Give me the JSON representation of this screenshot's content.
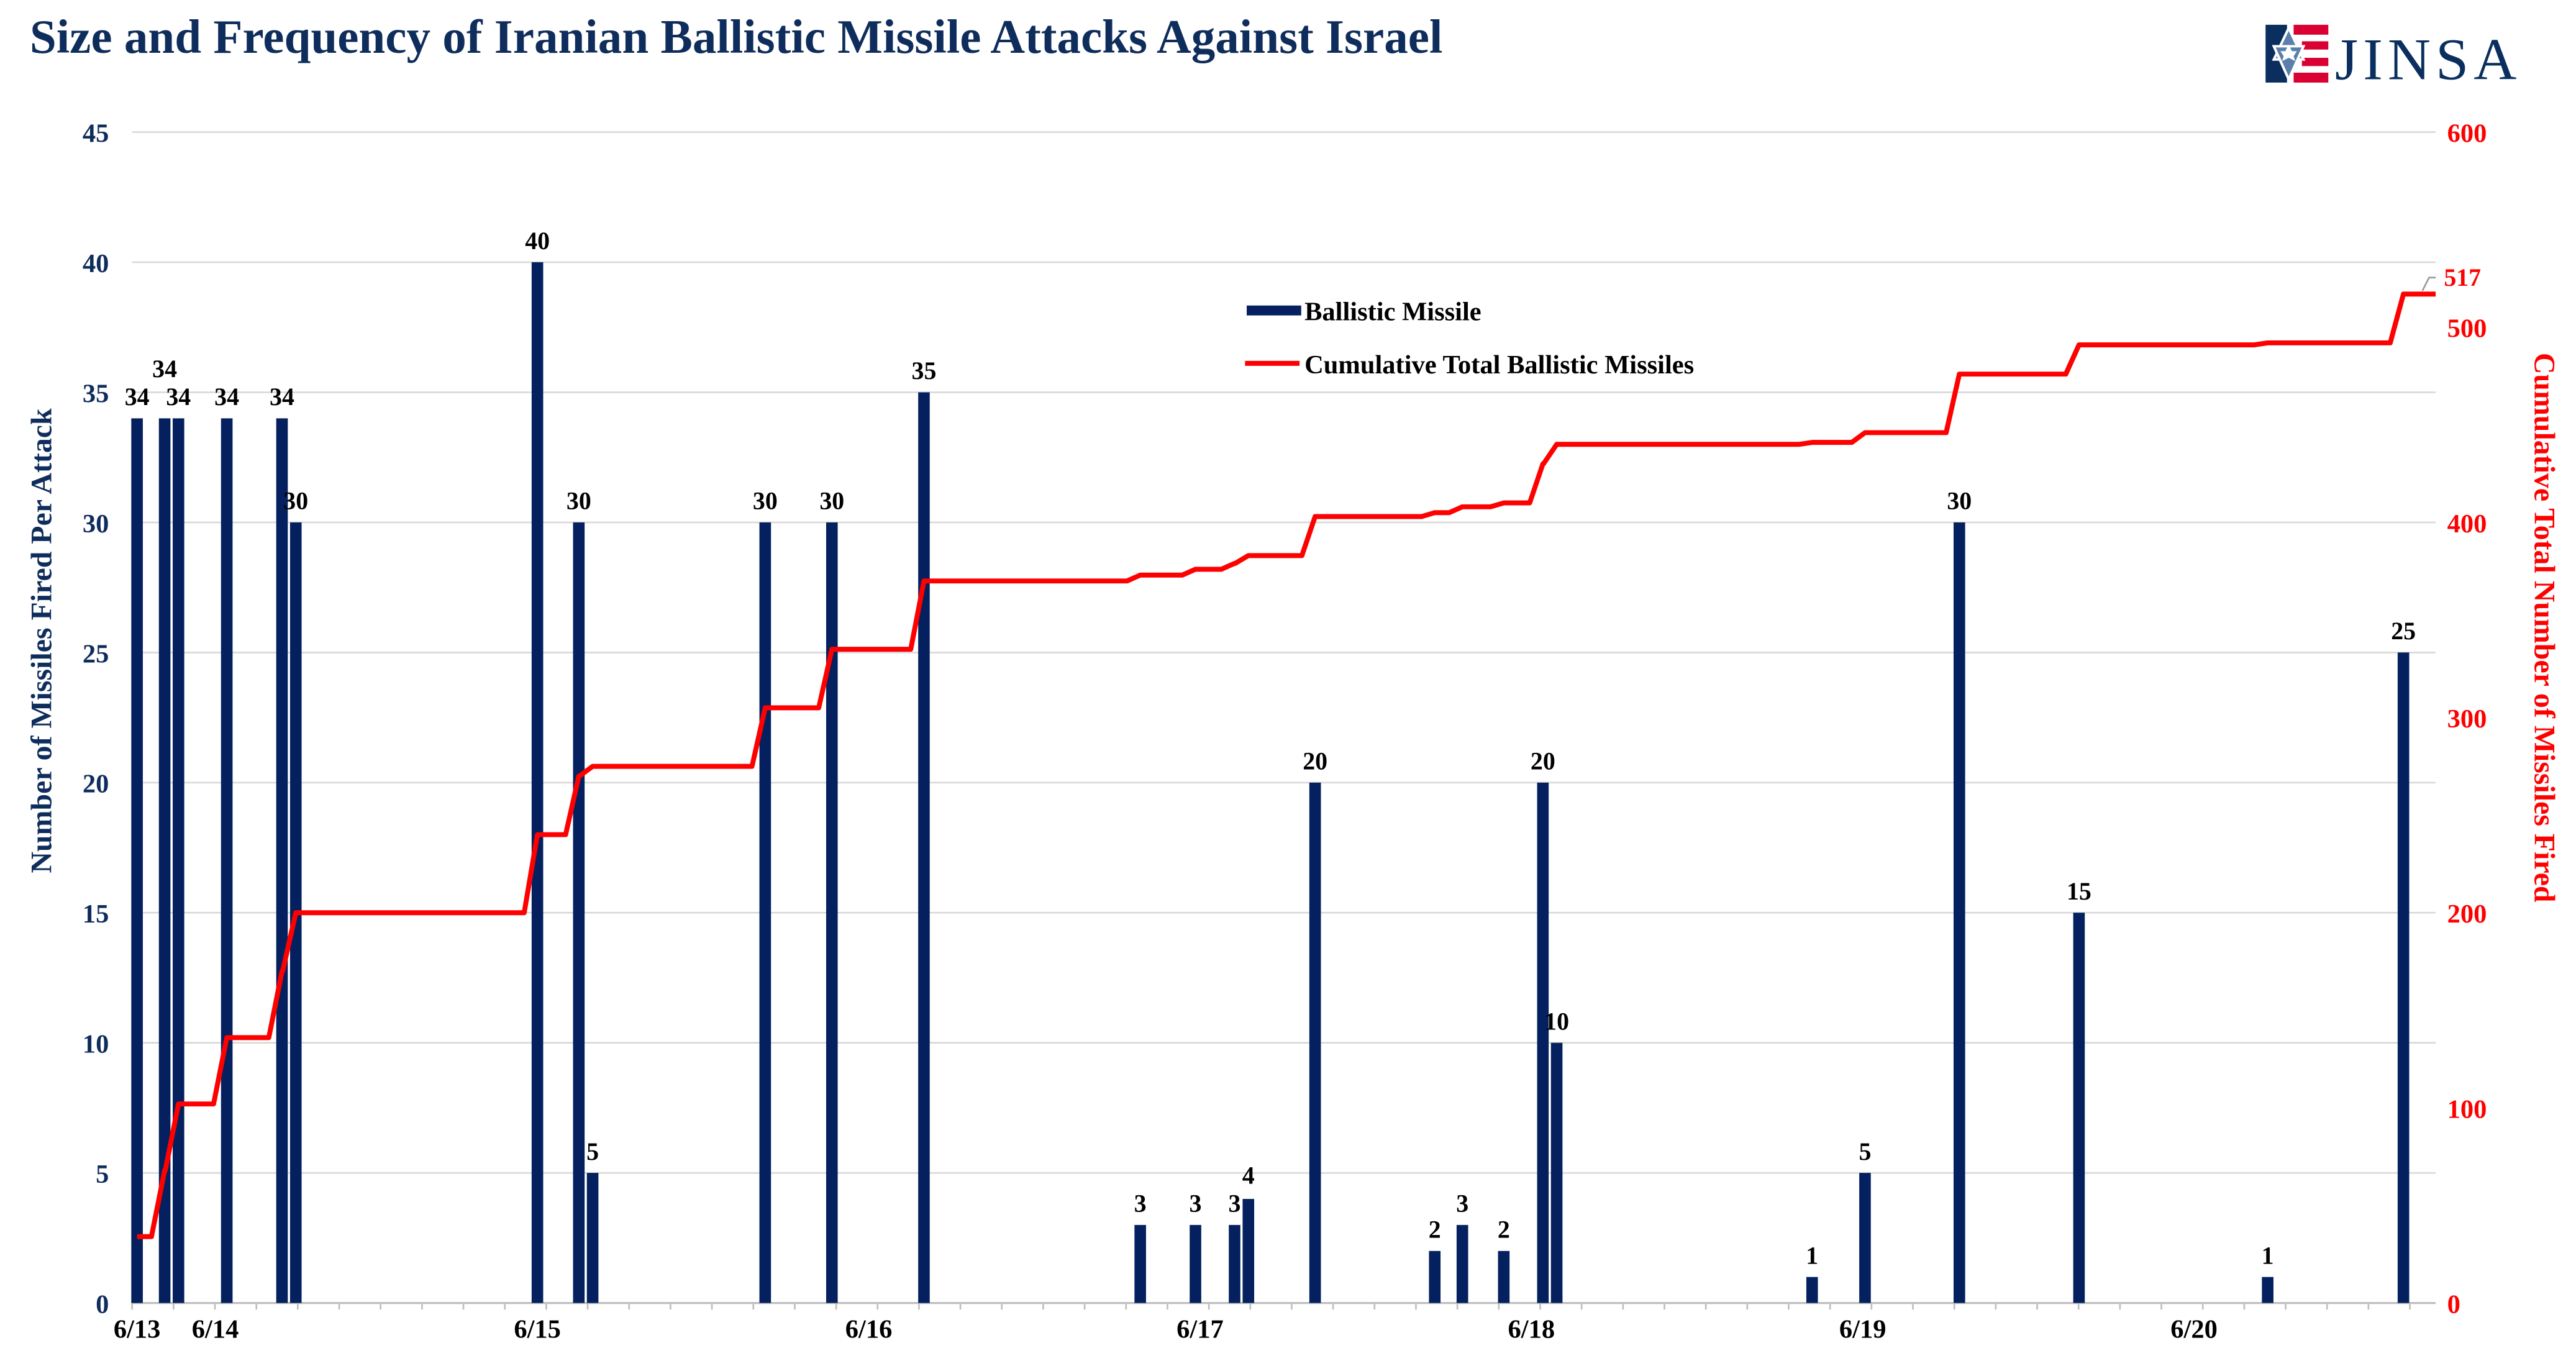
{
  "title": "Size and Frequency of Iranian Ballistic Missile Attacks Against Israel",
  "logo": {
    "text": "JINSA",
    "icon": "star-of-david-flag-icon"
  },
  "colors": {
    "bar": "#04205E",
    "line": "#FF0000",
    "title": "#0F2D5C",
    "grid": "#D9D9D9",
    "logo_red": "#D90032",
    "logo_blue": "#5A7FAB"
  },
  "chart_data": {
    "type": "bar+line",
    "title": "Size and Frequency of Iranian Ballistic Missile Attacks Against Israel",
    "ylabel": "Number of Missiles Fired Per Attack",
    "y2label": "Cumulative Total Number of Missiles Fired",
    "ylim": [
      0,
      45
    ],
    "y2lim": [
      0,
      600
    ],
    "yticks": [
      "0",
      "5",
      "10",
      "15",
      "20",
      "25",
      "30",
      "35",
      "40",
      "45"
    ],
    "y2ticks": [
      "0",
      "100",
      "200",
      "300",
      "400",
      "500",
      "600"
    ],
    "grid": true,
    "legend_placement": "top-center",
    "xticks": [
      {
        "label": "6/13",
        "at": "06-13 19:00"
      },
      {
        "label": "6/14",
        "at": "06-14 00:40"
      },
      {
        "label": "6/15",
        "at": "06-15 00:00"
      },
      {
        "label": "6/16",
        "at": "06-16 00:00"
      },
      {
        "label": "6/17",
        "at": "06-17 00:00"
      },
      {
        "label": "6/18",
        "at": "06-18 00:00"
      },
      {
        "label": "6/19",
        "at": "06-19 00:00"
      },
      {
        "label": "6/20",
        "at": "06-20 00:00"
      }
    ],
    "xlim": [
      "06-13 19:00",
      "06-20 17:30"
    ],
    "series": [
      {
        "name": "Ballistic Missile",
        "kind": "bar",
        "points": [
          {
            "t": "06-13 19:00",
            "v": 34
          },
          {
            "t": "06-13 21:00",
            "v": 34
          },
          {
            "t": "06-13 22:00",
            "v": 34
          },
          {
            "t": "06-14 01:30",
            "v": 34
          },
          {
            "t": "06-14 05:30",
            "v": 34
          },
          {
            "t": "06-14 06:30",
            "v": 30
          },
          {
            "t": "06-15 00:00",
            "v": 40
          },
          {
            "t": "06-15 03:00",
            "v": 30
          },
          {
            "t": "06-15 04:00",
            "v": 5
          },
          {
            "t": "06-15 16:30",
            "v": 30
          },
          {
            "t": "06-15 21:20",
            "v": 30
          },
          {
            "t": "06-16 04:00",
            "v": 35
          },
          {
            "t": "06-16 19:40",
            "v": 3
          },
          {
            "t": "06-16 23:40",
            "v": 3
          },
          {
            "t": "06-17 02:30",
            "v": 3
          },
          {
            "t": "06-17 03:30",
            "v": 4
          },
          {
            "t": "06-17 08:20",
            "v": 20
          },
          {
            "t": "06-17 17:00",
            "v": 2
          },
          {
            "t": "06-17 19:00",
            "v": 3
          },
          {
            "t": "06-17 22:00",
            "v": 2
          },
          {
            "t": "06-18 00:50",
            "v": 20
          },
          {
            "t": "06-18 01:50",
            "v": 10
          },
          {
            "t": "06-18 20:20",
            "v": 1
          },
          {
            "t": "06-19 00:10",
            "v": 5
          },
          {
            "t": "06-19 07:00",
            "v": 30
          },
          {
            "t": "06-19 15:40",
            "v": 15
          },
          {
            "t": "06-20 05:20",
            "v": 1
          },
          {
            "t": "06-20 15:10",
            "v": 25
          }
        ]
      },
      {
        "name": "Cumulative Total Ballistic Missiles",
        "kind": "line",
        "axis": "right",
        "values": [
          34,
          68,
          102,
          136,
          170,
          200,
          240,
          270,
          275,
          305,
          335,
          370,
          373,
          376,
          379,
          383,
          403,
          405,
          408,
          410,
          430,
          440,
          441,
          446,
          476,
          491,
          492,
          517
        ],
        "end_label": "517"
      }
    ]
  }
}
